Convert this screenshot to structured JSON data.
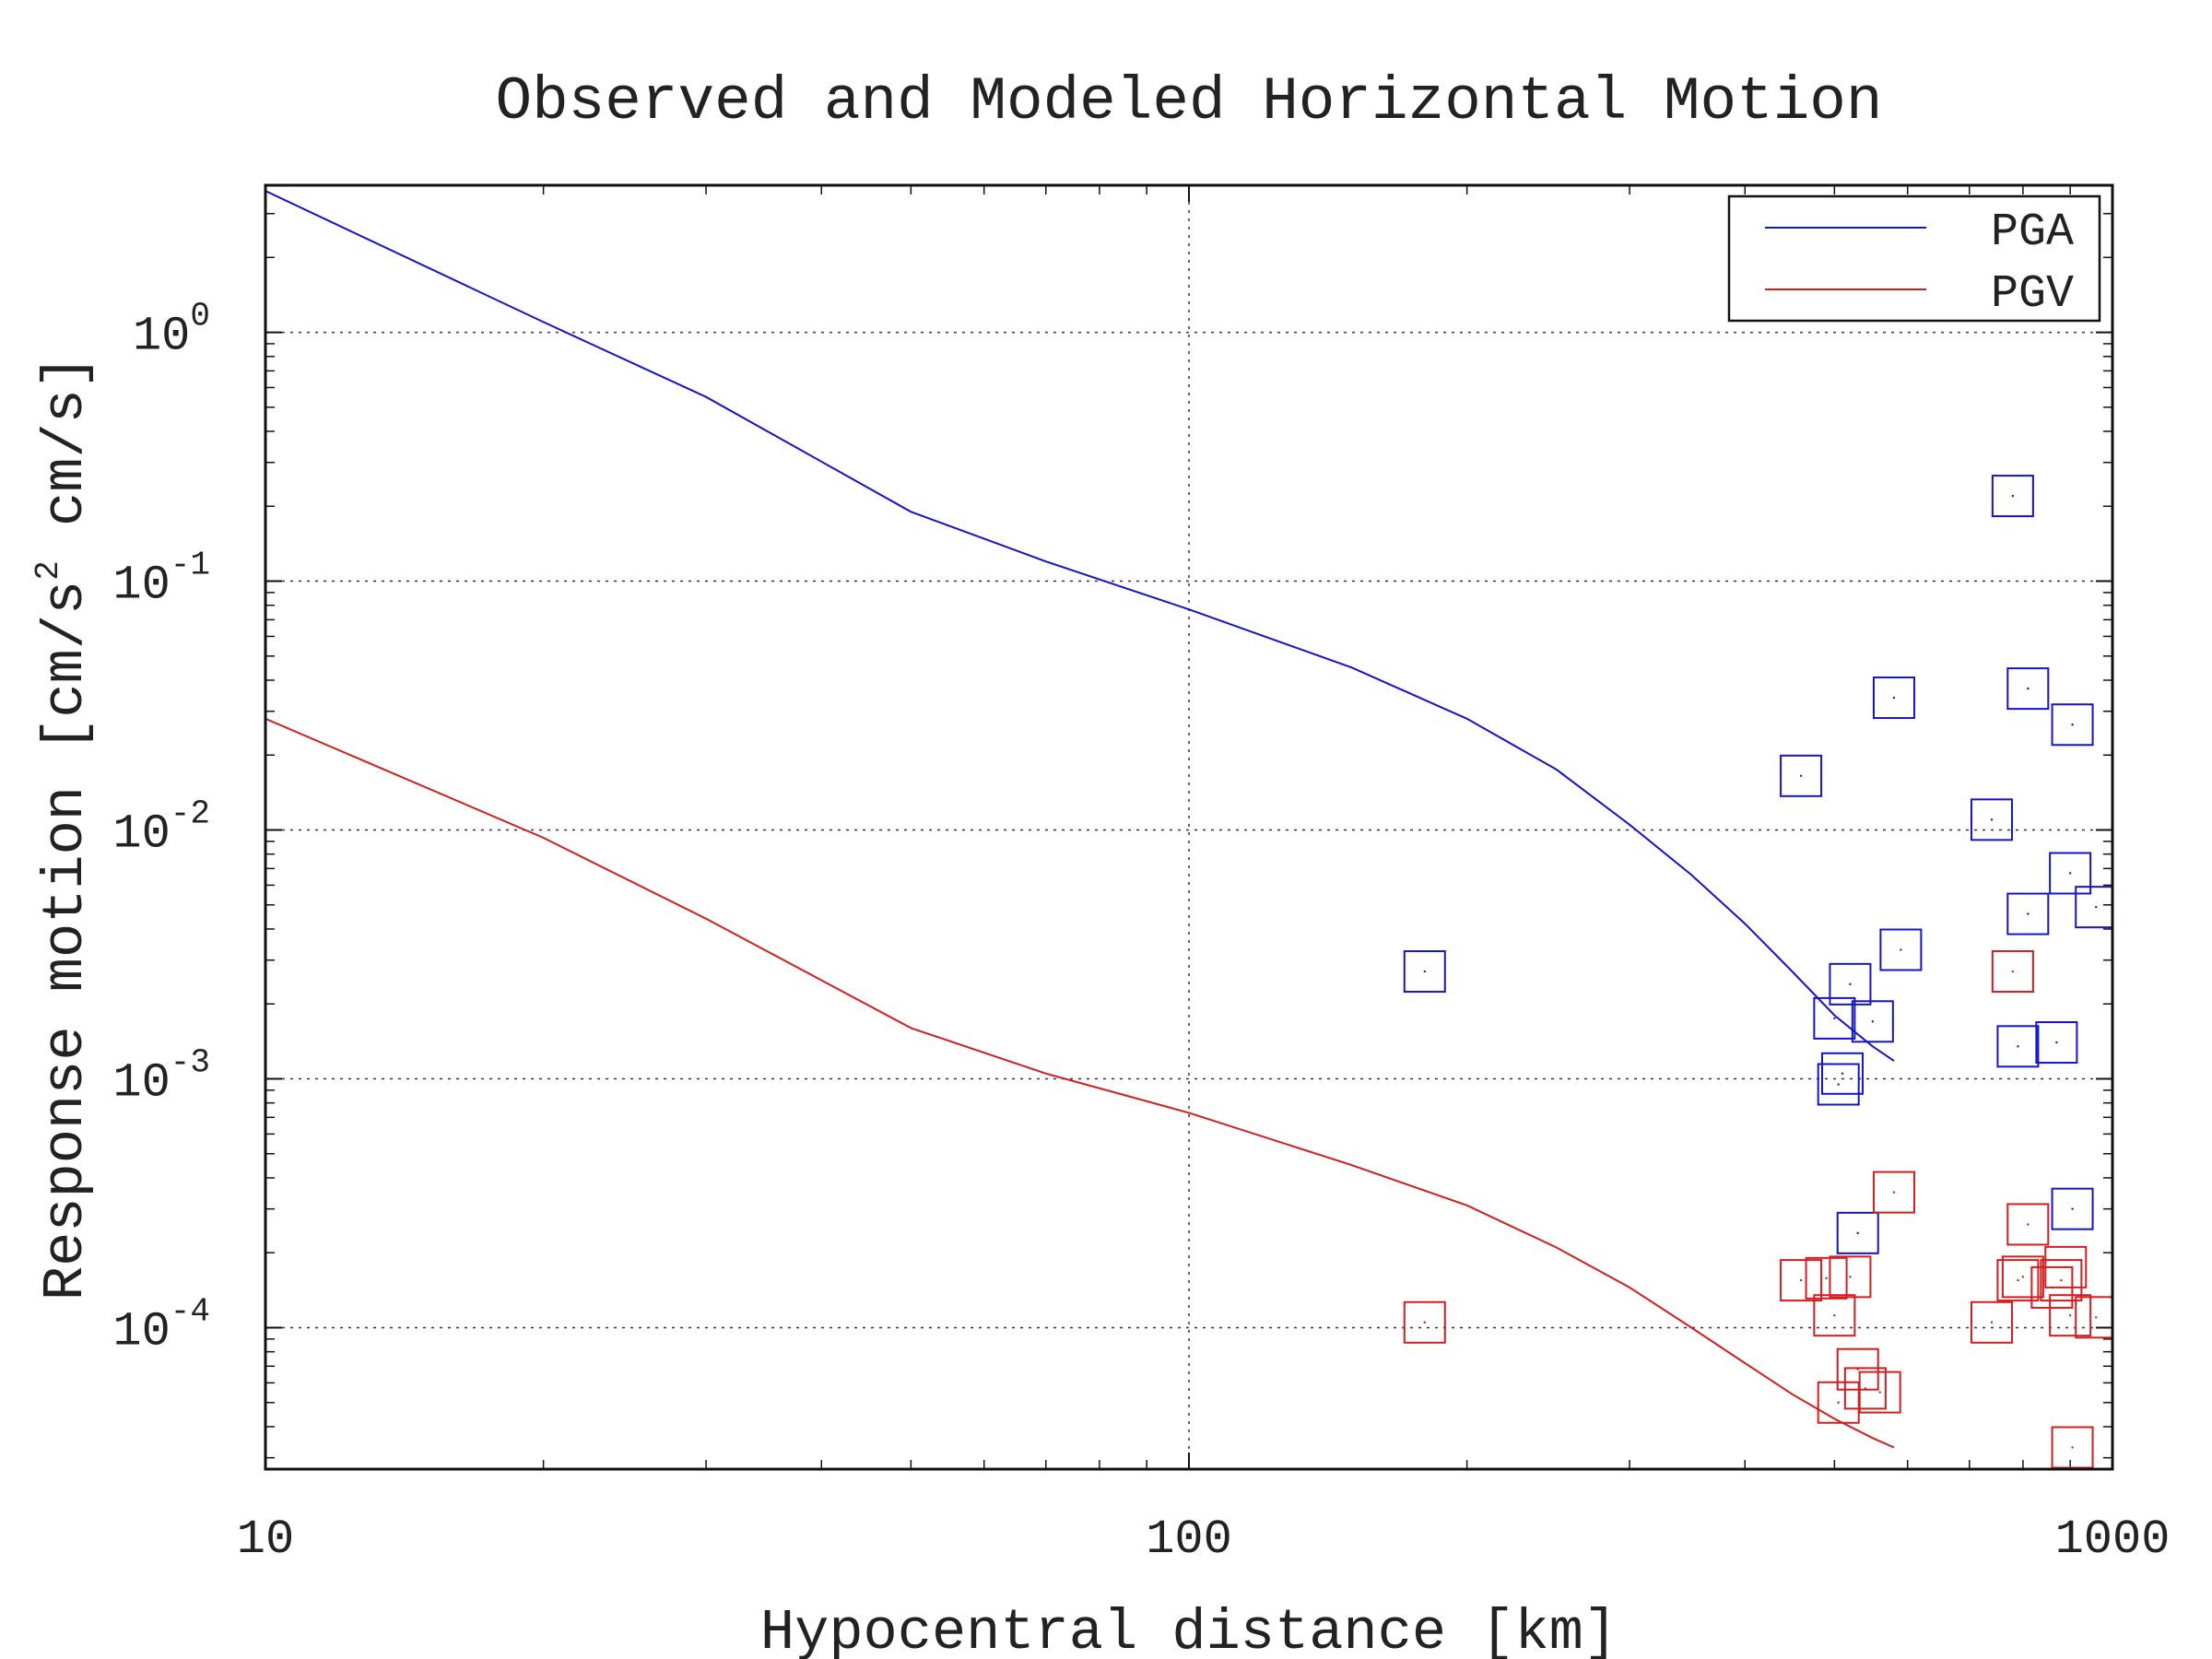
{
  "chart_data": {
    "type": "scatter",
    "title": "Observed and Modeled Horizontal Motion",
    "xlabel": "Hypocentral distance [km]",
    "ylabel": "Response motion  [cm/s²  cm/s]",
    "ylabel_parts": {
      "before": "Response motion  [cm/s",
      "superscript": "2",
      "after": "  cm/s]"
    },
    "x_scale": "log",
    "y_scale": "log",
    "xlim": [
      10,
      1000
    ],
    "ylim": [
      2.7e-05,
      3.9
    ],
    "x_ticks": [
      {
        "value": 10,
        "label": "10"
      },
      {
        "value": 100,
        "label": "100"
      },
      {
        "value": 1000,
        "label": "1000"
      }
    ],
    "y_ticks": [
      {
        "value": 1,
        "base": "10",
        "exp": "0"
      },
      {
        "value": 0.1,
        "base": "10",
        "exp": "-1"
      },
      {
        "value": 0.01,
        "base": "10",
        "exp": "-2"
      },
      {
        "value": 0.001,
        "base": "10",
        "exp": "-3"
      },
      {
        "value": 0.0001,
        "base": "10",
        "exp": "-4"
      }
    ],
    "grid": true,
    "legend_position": "top-right",
    "series": [
      {
        "name": "PGA",
        "color": "#1414c8",
        "model_line": [
          {
            "x": 10,
            "y": 3.7
          },
          {
            "x": 20,
            "y": 1.1
          },
          {
            "x": 30,
            "y": 0.55
          },
          {
            "x": 50,
            "y": 0.19
          },
          {
            "x": 70,
            "y": 0.12
          },
          {
            "x": 100,
            "y": 0.077
          },
          {
            "x": 150,
            "y": 0.045
          },
          {
            "x": 200,
            "y": 0.028
          },
          {
            "x": 250,
            "y": 0.0175
          },
          {
            "x": 300,
            "y": 0.0105
          },
          {
            "x": 350,
            "y": 0.0066
          },
          {
            "x": 400,
            "y": 0.0042
          },
          {
            "x": 450,
            "y": 0.0027
          },
          {
            "x": 500,
            "y": 0.0018
          },
          {
            "x": 550,
            "y": 0.00135
          },
          {
            "x": 580,
            "y": 0.00118
          }
        ],
        "observed": [
          {
            "x": 180,
            "y": 0.0027
          },
          {
            "x": 460,
            "y": 0.0165
          },
          {
            "x": 500,
            "y": 0.00175
          },
          {
            "x": 505,
            "y": 0.00095
          },
          {
            "x": 510,
            "y": 0.00105
          },
          {
            "x": 520,
            "y": 0.0024
          },
          {
            "x": 530,
            "y": 0.00024
          },
          {
            "x": 550,
            "y": 0.0017
          },
          {
            "x": 580,
            "y": 0.034
          },
          {
            "x": 590,
            "y": 0.0033
          },
          {
            "x": 740,
            "y": 0.011
          },
          {
            "x": 780,
            "y": 0.22
          },
          {
            "x": 790,
            "y": 0.00135
          },
          {
            "x": 810,
            "y": 0.037
          },
          {
            "x": 810,
            "y": 0.0046
          },
          {
            "x": 870,
            "y": 0.0014
          },
          {
            "x": 900,
            "y": 0.0067
          },
          {
            "x": 905,
            "y": 0.0265
          },
          {
            "x": 905,
            "y": 0.0003
          },
          {
            "x": 960,
            "y": 0.0049
          }
        ]
      },
      {
        "name": "PGV",
        "color": "#d21e1e",
        "model_line": [
          {
            "x": 10,
            "y": 0.028
          },
          {
            "x": 20,
            "y": 0.0093
          },
          {
            "x": 30,
            "y": 0.0044
          },
          {
            "x": 50,
            "y": 0.0016
          },
          {
            "x": 70,
            "y": 0.00105
          },
          {
            "x": 100,
            "y": 0.00073
          },
          {
            "x": 150,
            "y": 0.00045
          },
          {
            "x": 200,
            "y": 0.00031
          },
          {
            "x": 250,
            "y": 0.00021
          },
          {
            "x": 300,
            "y": 0.000145
          },
          {
            "x": 350,
            "y": 0.0001
          },
          {
            "x": 400,
            "y": 7.2e-05
          },
          {
            "x": 450,
            "y": 5.4e-05
          },
          {
            "x": 500,
            "y": 4.3e-05
          },
          {
            "x": 550,
            "y": 3.6e-05
          },
          {
            "x": 580,
            "y": 3.3e-05
          }
        ],
        "observed": [
          {
            "x": 180,
            "y": 0.000105
          },
          {
            "x": 460,
            "y": 0.000155
          },
          {
            "x": 490,
            "y": 0.000158
          },
          {
            "x": 500,
            "y": 0.000112
          },
          {
            "x": 505,
            "y": 5e-05
          },
          {
            "x": 520,
            "y": 0.00016
          },
          {
            "x": 530,
            "y": 6.8e-05
          },
          {
            "x": 540,
            "y": 5.7e-05
          },
          {
            "x": 560,
            "y": 5.5e-05
          },
          {
            "x": 580,
            "y": 0.00035
          },
          {
            "x": 740,
            "y": 0.000105
          },
          {
            "x": 780,
            "y": 0.0027
          },
          {
            "x": 790,
            "y": 0.000155
          },
          {
            "x": 800,
            "y": 0.00016
          },
          {
            "x": 810,
            "y": 0.00026
          },
          {
            "x": 860,
            "y": 0.000145
          },
          {
            "x": 880,
            "y": 0.000155
          },
          {
            "x": 890,
            "y": 0.000175
          },
          {
            "x": 900,
            "y": 0.000112
          },
          {
            "x": 905,
            "y": 3.3e-05
          },
          {
            "x": 960,
            "y": 0.00011
          }
        ]
      }
    ]
  }
}
